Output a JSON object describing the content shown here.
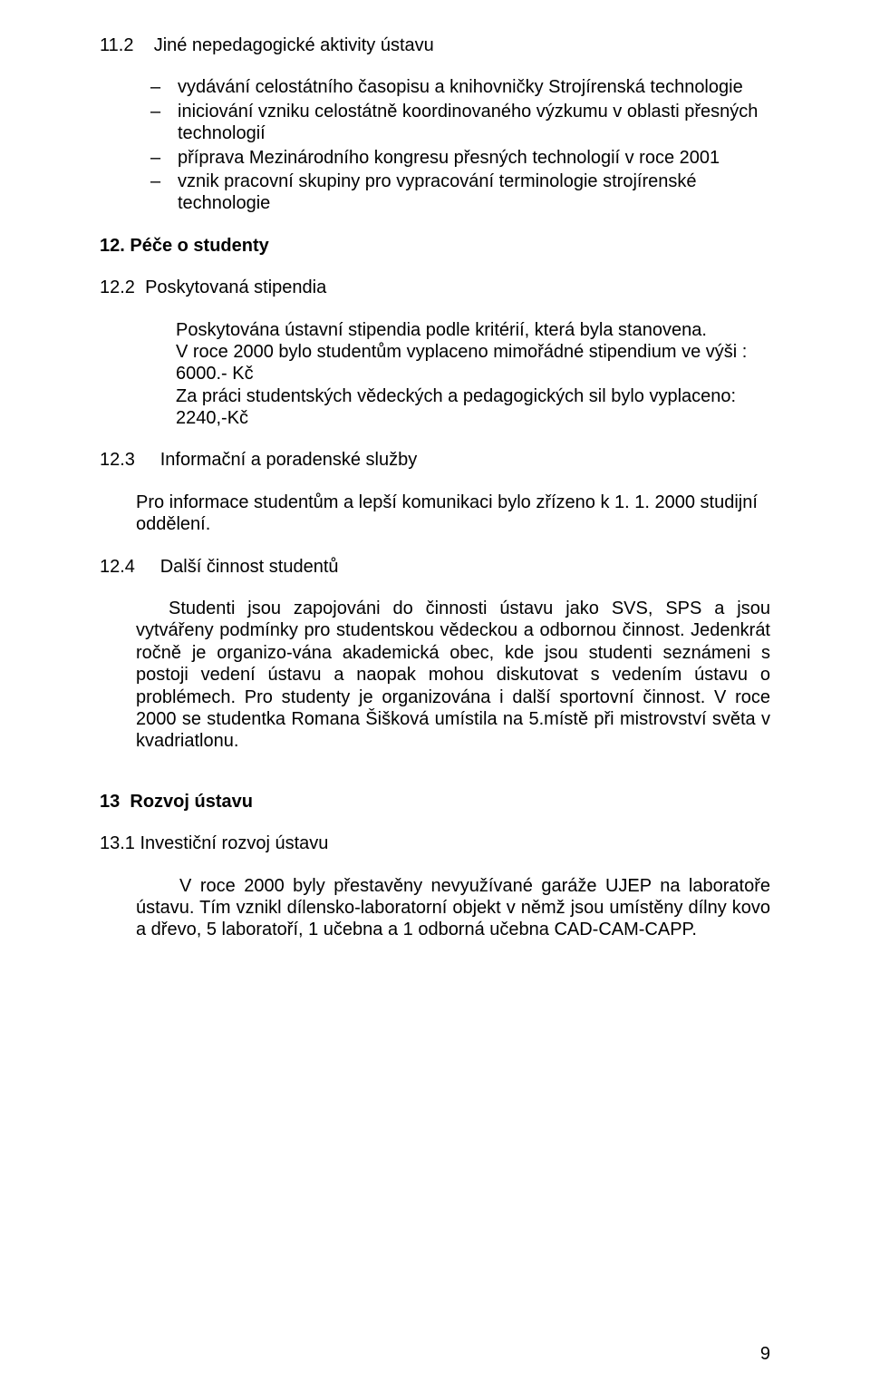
{
  "s11_2": {
    "num": "11.2",
    "title": "Jiné nepedagogické aktivity ústavu",
    "bullets": [
      "vydávání celostátního časopisu a knihovničky Strojírenská technologie",
      "iniciování vzniku celostátně koordinovaného výzkumu v oblasti přesných technologií",
      "příprava Mezinárodního kongresu přesných technologií v roce 2001",
      "vznik pracovní skupiny pro vypracování terminologie strojírenské technologie"
    ]
  },
  "s12": {
    "num": "12.",
    "title": "Péče o studenty"
  },
  "s12_2": {
    "num": "12.2",
    "title": "Poskytovaná stipendia",
    "p1": "Poskytována ústavní stipendia podle kritérií, která byla  stanovena.",
    "p2": "V roce 2000 bylo studentům vyplaceno mimořádné stipendium ve výši : 6000.- Kč",
    "p3": "Za práci studentských vědeckých a pedagogických sil bylo vyplaceno: 2240,-Kč"
  },
  "s12_3": {
    "num": "12.3",
    "title": "Informační a poradenské služby",
    "p1": "Pro informace studentům a lepší komunikaci bylo zřízeno k 1. 1. 2000 studijní oddělení."
  },
  "s12_4": {
    "num": "12.4",
    "title": "Další činnost studentů",
    "p1": "Studenti jsou zapojováni do činnosti ústavu jako SVS, SPS a jsou vytvářeny podmínky pro studentskou vědeckou a odbornou činnost. Jedenkrát ročně je organizo-vána akademická obec, kde jsou studenti seznámeni s postoji vedení ústavu a naopak mohou diskutovat s vedením ústavu o problémech. Pro studenty je organizována i další sportovní činnost. V roce 2000 se studentka Romana Šišková umístila na 5.místě při mistrovství světa v kvadriatlonu."
  },
  "s13": {
    "num": "13",
    "title": "Rozvoj ústavu"
  },
  "s13_1": {
    "num": "13.1",
    "title": "Investiční rozvoj ústavu",
    "p1": "V roce 2000 byly přestavěny nevyužívané garáže UJEP na laboratoře ústavu. Tím vznikl dílensko-laboratorní objekt v němž jsou umístěny dílny kovo a dřevo, 5 laboratoří, 1 učebna a 1 odborná učebna CAD-CAM-CAPP."
  },
  "dash": "–",
  "page_number": "9"
}
